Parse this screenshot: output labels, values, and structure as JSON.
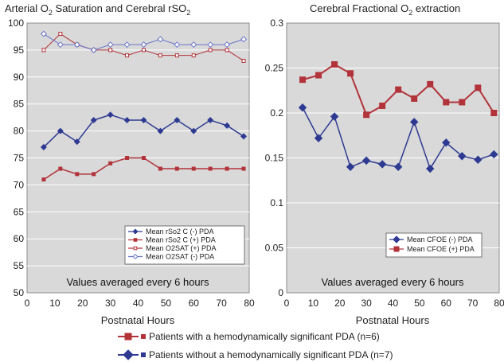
{
  "chart_data": [
    {
      "type": "line",
      "title_prefix": "Arterial O",
      "title_sub1": "2",
      "title_middle": " Saturation and Cerebral rSO",
      "title_sub2": "2",
      "xlabel": "Postnatal Hours",
      "ylabel": "",
      "xlim": [
        0,
        80
      ],
      "ylim": [
        50,
        100
      ],
      "x_ticks": [
        0,
        10,
        20,
        30,
        40,
        50,
        60,
        70,
        80
      ],
      "y_ticks": [
        50,
        55,
        60,
        65,
        70,
        75,
        80,
        85,
        90,
        95,
        100
      ],
      "grid": true,
      "legend_position": "bottom-right",
      "annotation": "Values averaged every 6 hours",
      "x": [
        6,
        12,
        18,
        24,
        30,
        36,
        42,
        48,
        54,
        60,
        66,
        72,
        78
      ],
      "series": [
        {
          "name": "Mean rSo2 C (-) PDA",
          "color": "#2e3a92",
          "marker": "diamond-filled",
          "values": [
            77,
            80,
            78,
            82,
            83,
            82,
            82,
            80,
            82,
            80,
            82,
            81,
            79
          ]
        },
        {
          "name": "Mean rSo2 C (+) PDA",
          "color": "#b2333a",
          "marker": "square-filled",
          "values": [
            71,
            73,
            72,
            72,
            74,
            75,
            75,
            73,
            73,
            73,
            73,
            73,
            73
          ]
        },
        {
          "name": "Mean O2SAT (+) PDA",
          "color": "#b2333a",
          "marker": "square-open",
          "values": [
            95,
            98,
            96,
            95,
            95,
            94,
            95,
            94,
            94,
            94,
            95,
            95,
            93
          ]
        },
        {
          "name": "Mean O2SAT (-) PDA",
          "color": "#6a75c9",
          "marker": "diamond-open",
          "values": [
            98,
            96,
            96,
            95,
            96,
            96,
            96,
            97,
            96,
            96,
            96,
            96,
            97
          ]
        }
      ]
    },
    {
      "type": "line",
      "title_prefix": "Cerebral Fractional O",
      "title_sub1": "2",
      "title_middle": " extraction",
      "title_sub2": "",
      "xlabel": "Postnatal Hours",
      "ylabel": "",
      "xlim": [
        0,
        80
      ],
      "ylim": [
        0,
        0.3
      ],
      "x_ticks": [
        0,
        10,
        20,
        30,
        40,
        50,
        60,
        70,
        80
      ],
      "y_ticks": [
        "0",
        "0.05",
        "0.1",
        "0.15",
        "0.2",
        "0.25",
        "0.3"
      ],
      "grid": true,
      "legend_position": "bottom-right",
      "annotation": "Values averaged every 6 hours",
      "x": [
        6,
        12,
        18,
        24,
        30,
        36,
        42,
        48,
        54,
        60,
        66,
        72,
        78
      ],
      "series": [
        {
          "name": "Mean CFOE (-) PDA",
          "color": "#2e3a92",
          "marker": "diamond-filled",
          "values": [
            0.206,
            0.172,
            0.196,
            0.14,
            0.147,
            0.143,
            0.14,
            0.19,
            0.138,
            0.167,
            0.152,
            0.148,
            0.154
          ]
        },
        {
          "name": "Mean CFOE (+) PDA",
          "color": "#b2333a",
          "marker": "square-filled",
          "values": [
            0.237,
            0.242,
            0.254,
            0.244,
            0.198,
            0.208,
            0.226,
            0.216,
            0.232,
            0.212,
            0.212,
            0.228,
            0.2
          ]
        }
      ]
    }
  ],
  "legend": {
    "items": [
      {
        "label": "Patients with a hemodynamically significant PDA (n=6)",
        "color": "#b2333a",
        "marker": "square-filled"
      },
      {
        "label": "Patients without a hemodynamically significant PDA (n=7)",
        "color": "#2e3a92",
        "marker": "diamond-filled"
      }
    ]
  }
}
